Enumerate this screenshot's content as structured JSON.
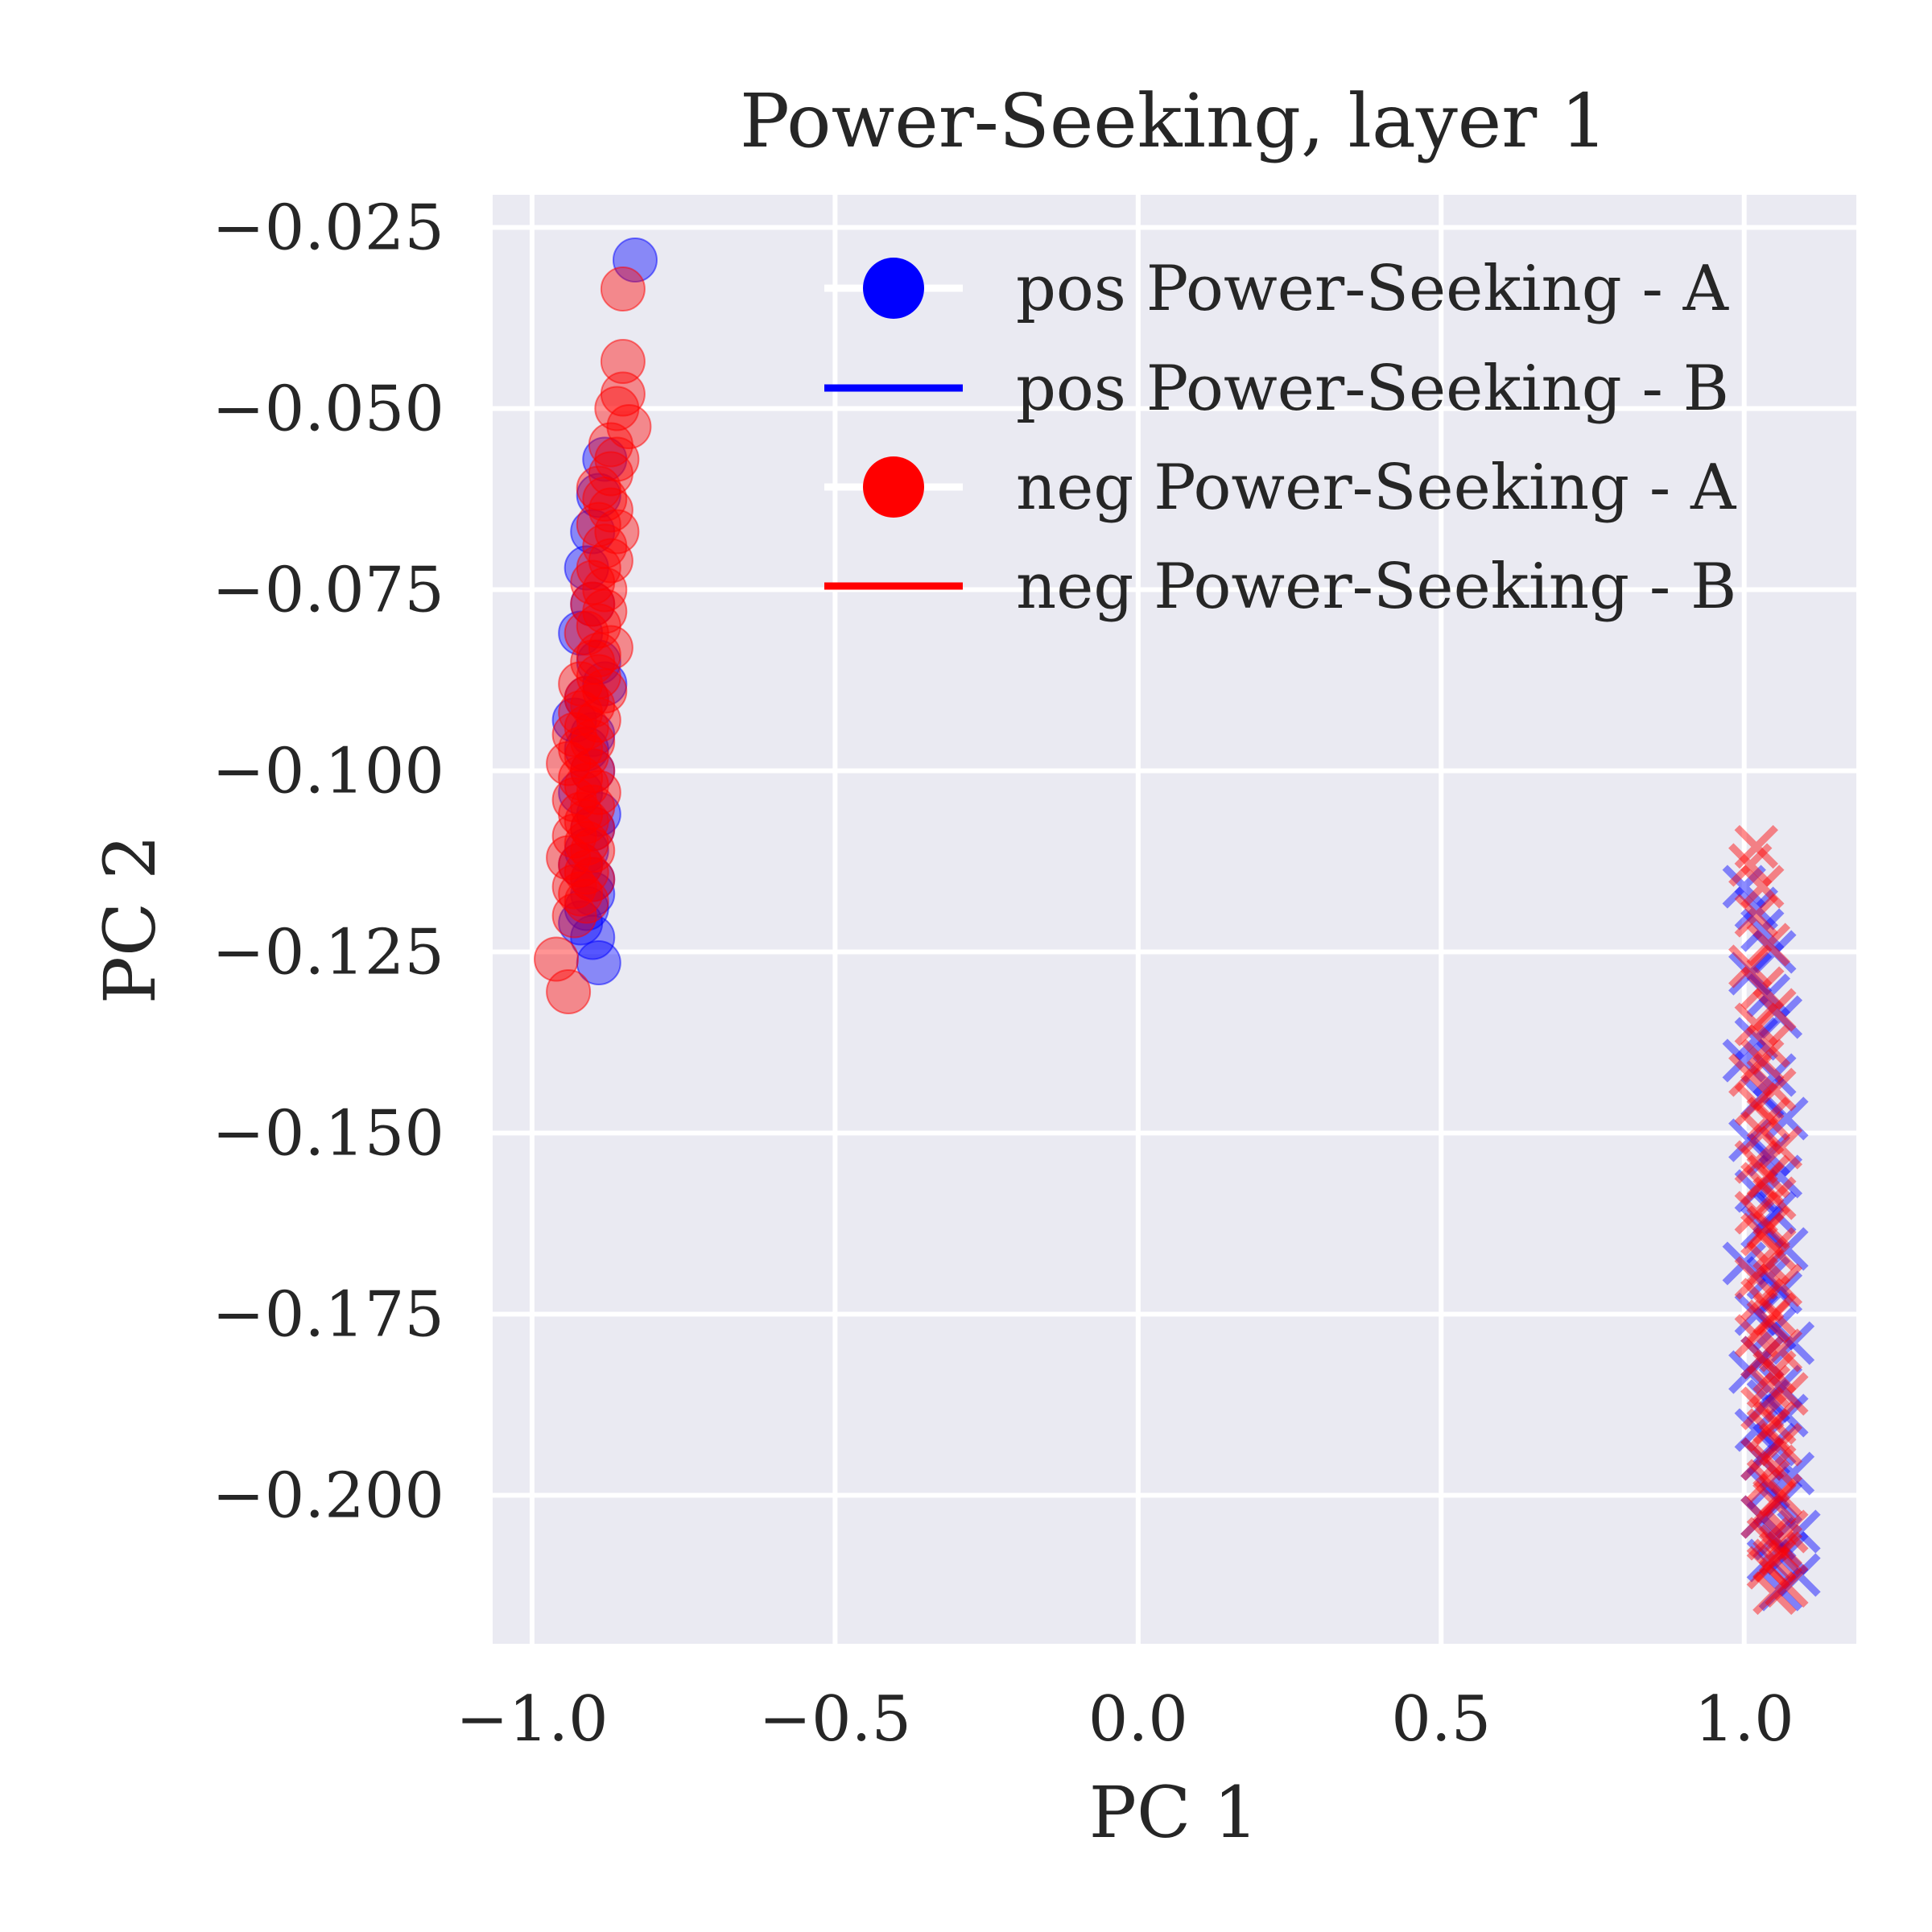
{
  "chart_data": {
    "type": "scatter",
    "title": "Power-Seeking, layer 1",
    "xlabel": "PC 1",
    "ylabel": "PC 2",
    "xlim": [
      -1.065,
      1.185
    ],
    "ylim": [
      -0.2205,
      -0.0205
    ],
    "x_ticks": [
      -1.0,
      -0.5,
      0.0,
      0.5,
      1.0
    ],
    "x_tick_labels": [
      "−1.0",
      "−0.5",
      "0.0",
      "0.5",
      "1.0"
    ],
    "y_ticks": [
      -0.025,
      -0.05,
      -0.075,
      -0.1,
      -0.125,
      -0.15,
      -0.175,
      -0.2
    ],
    "y_tick_labels": [
      "−0.025",
      "−0.050",
      "−0.075",
      "−0.100",
      "−0.125",
      "−0.150",
      "−0.175",
      "−0.200"
    ],
    "grid": true,
    "legend_position": "top-right",
    "background": "#eaeaf2",
    "legend": [
      {
        "label": "pos Power-Seeking - A",
        "color": "#0000ff",
        "style": "marker-circle"
      },
      {
        "label": "pos Power-Seeking - B",
        "color": "#0000ff",
        "style": "line"
      },
      {
        "label": "neg Power-Seeking - A",
        "color": "#ff0000",
        "style": "marker-circle"
      },
      {
        "label": "neg Power-Seeking - B",
        "color": "#ff0000",
        "style": "line"
      }
    ],
    "series": [
      {
        "name": "pos Power-Seeking - A",
        "marker": "circle",
        "color": "#0000ff",
        "x": [
          -0.83,
          -0.88,
          -0.89,
          -0.9,
          -0.91,
          -0.9,
          -0.92,
          -0.89,
          -0.88,
          -0.91,
          -0.93,
          -0.9,
          -0.91,
          -0.9,
          -0.92,
          -0.89,
          -0.9,
          -0.91,
          -0.92,
          -0.9,
          -0.9,
          -0.91,
          -0.92,
          -0.9,
          -0.89
        ],
        "y": [
          -0.0295,
          -0.057,
          -0.062,
          -0.067,
          -0.072,
          -0.077,
          -0.081,
          -0.085,
          -0.088,
          -0.09,
          -0.093,
          -0.095,
          -0.097,
          -0.1,
          -0.103,
          -0.106,
          -0.108,
          -0.111,
          -0.113,
          -0.115,
          -0.117,
          -0.119,
          -0.121,
          -0.123,
          -0.1265
        ]
      },
      {
        "name": "neg Power-Seeking - A",
        "marker": "circle",
        "color": "#ff0000",
        "x": [
          -0.85,
          -0.85,
          -0.85,
          -0.86,
          -0.84,
          -0.87,
          -0.86,
          -0.87,
          -0.89,
          -0.88,
          -0.87,
          -0.89,
          -0.86,
          -0.88,
          -0.87,
          -0.89,
          -0.9,
          -0.88,
          -0.9,
          -0.88,
          -0.89,
          -0.91,
          -0.87,
          -0.89,
          -0.9,
          -0.89,
          -0.92,
          -0.88,
          -0.91,
          -0.9,
          -0.92,
          -0.89,
          -0.91,
          -0.93,
          -0.9,
          -0.92,
          -0.91,
          -0.94,
          -0.9,
          -0.92,
          -0.91,
          -0.89,
          -0.93,
          -0.9,
          -0.92,
          -0.91,
          -0.9,
          -0.93,
          -0.91,
          -0.9,
          -0.94,
          -0.92,
          -0.91,
          -0.9,
          -0.93,
          -0.92,
          -0.91,
          -0.96,
          -0.94,
          -0.93
        ],
        "y": [
          -0.0335,
          -0.0435,
          -0.048,
          -0.05,
          -0.0525,
          -0.055,
          -0.057,
          -0.059,
          -0.061,
          -0.0625,
          -0.064,
          -0.066,
          -0.067,
          -0.069,
          -0.071,
          -0.072,
          -0.074,
          -0.075,
          -0.077,
          -0.078,
          -0.08,
          -0.081,
          -0.083,
          -0.084,
          -0.085,
          -0.087,
          -0.088,
          -0.089,
          -0.09,
          -0.091,
          -0.092,
          -0.093,
          -0.094,
          -0.095,
          -0.096,
          -0.097,
          -0.098,
          -0.099,
          -0.1,
          -0.101,
          -0.102,
          -0.103,
          -0.104,
          -0.105,
          -0.106,
          -0.107,
          -0.108,
          -0.109,
          -0.11,
          -0.111,
          -0.112,
          -0.113,
          -0.114,
          -0.115,
          -0.116,
          -0.117,
          -0.118,
          -0.126,
          -0.1305,
          -0.12
        ]
      },
      {
        "name": "pos Power-Seeking - B",
        "marker": "x",
        "color": "#0000ff",
        "x": [
          1.0,
          1.02,
          1.03,
          1.05,
          1.01,
          1.04,
          1.06,
          1.02,
          1.0,
          1.05,
          1.03,
          1.07,
          1.01,
          1.04,
          1.06,
          1.02,
          1.05,
          1.03,
          1.07,
          1.0,
          1.04,
          1.06,
          1.02,
          1.05,
          1.08,
          1.03,
          1.01,
          1.06,
          1.04,
          1.07,
          1.02,
          1.05,
          1.03,
          1.08,
          1.04,
          1.06,
          1.03,
          1.09,
          1.05,
          1.07,
          1.04,
          1.09,
          1.06
        ],
        "y": [
          -0.116,
          -0.119,
          -0.122,
          -0.125,
          -0.128,
          -0.131,
          -0.134,
          -0.137,
          -0.14,
          -0.142,
          -0.145,
          -0.148,
          -0.151,
          -0.153,
          -0.156,
          -0.158,
          -0.161,
          -0.163,
          -0.166,
          -0.168,
          -0.17,
          -0.172,
          -0.175,
          -0.177,
          -0.179,
          -0.181,
          -0.183,
          -0.185,
          -0.187,
          -0.189,
          -0.191,
          -0.193,
          -0.195,
          -0.197,
          -0.199,
          -0.201,
          -0.203,
          -0.205,
          -0.206,
          -0.208,
          -0.209,
          -0.211,
          -0.213
        ]
      },
      {
        "name": "neg Power-Seeking - B",
        "marker": "x",
        "color": "#ff0000",
        "x": [
          1.02,
          1.01,
          1.03,
          1.02,
          1.04,
          1.01,
          1.03,
          1.05,
          1.02,
          1.04,
          1.03,
          1.01,
          1.05,
          1.02,
          1.04,
          1.03,
          1.06,
          1.02,
          1.04,
          1.03,
          1.05,
          1.02,
          1.04,
          1.03,
          1.05,
          1.04,
          1.02,
          1.06,
          1.03,
          1.05,
          1.04,
          1.02,
          1.06,
          1.03,
          1.05,
          1.04,
          1.07,
          1.03,
          1.05,
          1.04,
          1.06,
          1.03,
          1.05,
          1.04,
          1.06,
          1.05,
          1.03,
          1.07,
          1.04,
          1.06,
          1.05,
          1.04,
          1.07,
          1.05,
          1.06
        ],
        "y": [
          -0.1105,
          -0.113,
          -0.116,
          -0.12,
          -0.124,
          -0.127,
          -0.13,
          -0.133,
          -0.135,
          -0.138,
          -0.14,
          -0.142,
          -0.144,
          -0.146,
          -0.148,
          -0.15,
          -0.152,
          -0.154,
          -0.156,
          -0.157,
          -0.159,
          -0.161,
          -0.163,
          -0.164,
          -0.166,
          -0.168,
          -0.17,
          -0.171,
          -0.173,
          -0.175,
          -0.176,
          -0.178,
          -0.18,
          -0.181,
          -0.183,
          -0.185,
          -0.186,
          -0.188,
          -0.19,
          -0.191,
          -0.193,
          -0.195,
          -0.196,
          -0.198,
          -0.2,
          -0.201,
          -0.203,
          -0.205,
          -0.206,
          -0.207,
          -0.209,
          -0.21,
          -0.2125,
          -0.2135,
          -0.208
        ]
      }
    ]
  }
}
